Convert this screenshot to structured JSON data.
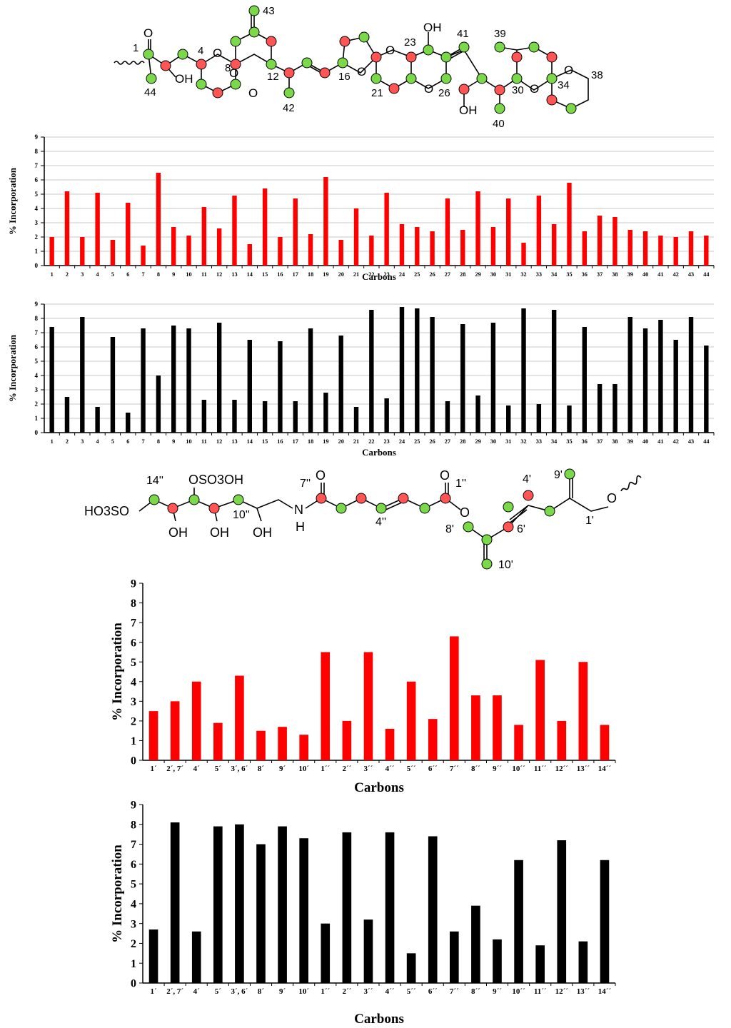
{
  "colors": {
    "labeled_red": "#ff0000",
    "labeled_green": "#7ad84a",
    "unlabeled_black": "#000000",
    "grid": "#c8c8c8"
  },
  "molecule_top": {
    "labels": [
      "1",
      "4",
      "8",
      "12",
      "16",
      "21",
      "23",
      "26",
      "30",
      "34",
      "38",
      "39",
      "40",
      "41",
      "42",
      "43",
      "44"
    ],
    "groups": [
      "O",
      "O",
      "OH",
      "O",
      "OH",
      "O",
      "O",
      "O",
      "O",
      "OH",
      "O",
      "OH",
      "O",
      "O"
    ]
  },
  "molecule_bottom": {
    "labels": [
      "14''",
      "10''",
      "7''",
      "4''",
      "1''",
      "4'",
      "9'",
      "1'",
      "8'",
      "6'",
      "10'"
    ],
    "groups": [
      "HO3SO",
      "OSO3OH",
      "OH",
      "OH",
      "OH",
      "N",
      "H",
      "O",
      "O",
      "O",
      "O"
    ]
  },
  "chart_data": [
    {
      "type": "bar",
      "ylabel": "% Incorporation",
      "xlabel": "Carbons",
      "ylim": [
        0,
        9
      ],
      "color": "#ff0000",
      "categories": [
        "1",
        "2",
        "3",
        "4",
        "5",
        "6",
        "7",
        "8",
        "9",
        "10",
        "11",
        "12",
        "13",
        "14",
        "15",
        "16",
        "17",
        "18",
        "19",
        "20",
        "21",
        "22",
        "23",
        "24",
        "25",
        "26",
        "27",
        "28",
        "29",
        "30",
        "31",
        "32",
        "33",
        "34",
        "35",
        "36",
        "37",
        "38",
        "39",
        "40",
        "41",
        "42",
        "43",
        "44"
      ],
      "values": [
        2.0,
        5.2,
        2.0,
        5.1,
        1.8,
        4.4,
        1.4,
        6.5,
        2.7,
        2.1,
        4.1,
        2.6,
        4.9,
        1.5,
        5.4,
        2.0,
        4.7,
        2.2,
        6.2,
        1.8,
        4.0,
        2.1,
        5.1,
        2.9,
        2.7,
        2.4,
        4.7,
        2.5,
        5.2,
        2.7,
        4.7,
        1.6,
        4.9,
        2.9,
        5.8,
        2.4,
        3.5,
        3.4,
        2.5,
        2.4,
        2.1,
        2.0,
        2.4,
        2.1
      ]
    },
    {
      "type": "bar",
      "ylabel": "% Incorporation",
      "xlabel": "Carbons",
      "ylim": [
        0,
        9
      ],
      "color": "#000000",
      "categories": [
        "1",
        "2",
        "3",
        "4",
        "5",
        "6",
        "7",
        "8",
        "9",
        "10",
        "11",
        "12",
        "13",
        "14",
        "15",
        "16",
        "17",
        "18",
        "19",
        "20",
        "21",
        "22",
        "23",
        "24",
        "25",
        "26",
        "27",
        "28",
        "29",
        "30",
        "31",
        "32",
        "33",
        "34",
        "35",
        "36",
        "37",
        "38",
        "39",
        "40",
        "41",
        "42",
        "43",
        "44"
      ],
      "values": [
        7.4,
        2.5,
        8.1,
        1.8,
        6.7,
        1.4,
        7.3,
        4.0,
        7.5,
        7.3,
        2.3,
        7.7,
        2.3,
        6.5,
        2.2,
        6.4,
        2.2,
        7.3,
        2.8,
        6.8,
        1.8,
        8.6,
        2.4,
        8.8,
        8.7,
        8.1,
        2.2,
        7.6,
        2.6,
        7.7,
        1.9,
        8.7,
        2.0,
        8.6,
        1.9,
        7.4,
        3.4,
        3.4,
        8.1,
        7.3,
        7.9,
        6.5,
        8.1,
        6.1
      ]
    },
    {
      "type": "bar",
      "ylabel": "% Incorporation",
      "xlabel": "Carbons",
      "ylim": [
        0,
        9
      ],
      "color": "#ff0000",
      "categories": [
        "1´",
        "2´, 7´",
        "4´",
        "5´",
        "3´, 6´",
        "8´",
        "9´",
        "10´",
        "1´´",
        "2´´",
        "3´´",
        "4´´",
        "5´´",
        "6´´",
        "7´´",
        "8´´",
        "9´´",
        "10´´",
        "11´´",
        "12´´",
        "13´´",
        "14´´"
      ],
      "values": [
        2.5,
        3.0,
        4.0,
        1.9,
        4.3,
        1.5,
        1.7,
        1.3,
        5.5,
        2.0,
        5.5,
        1.6,
        4.0,
        2.1,
        6.3,
        3.3,
        3.3,
        1.8,
        5.1,
        2.0,
        5.0,
        1.8
      ]
    },
    {
      "type": "bar",
      "ylabel": "% Incorporation",
      "xlabel": "Carbons",
      "ylim": [
        0,
        9
      ],
      "color": "#000000",
      "categories": [
        "1´",
        "2´, 7´",
        "4´",
        "5´",
        "3´, 6´",
        "8´",
        "9´",
        "10´",
        "1´´",
        "2´´",
        "3´´",
        "4´´",
        "5´´",
        "6´´",
        "7´´",
        "8´´",
        "9´´",
        "10´´",
        "11´´",
        "12´´",
        "13´´",
        "14´´"
      ],
      "values": [
        2.7,
        8.1,
        2.6,
        7.9,
        8.0,
        7.0,
        7.9,
        7.3,
        3.0,
        7.6,
        3.2,
        7.6,
        1.5,
        7.4,
        2.6,
        3.9,
        2.2,
        6.2,
        1.9,
        7.2,
        2.1,
        6.2
      ]
    }
  ]
}
